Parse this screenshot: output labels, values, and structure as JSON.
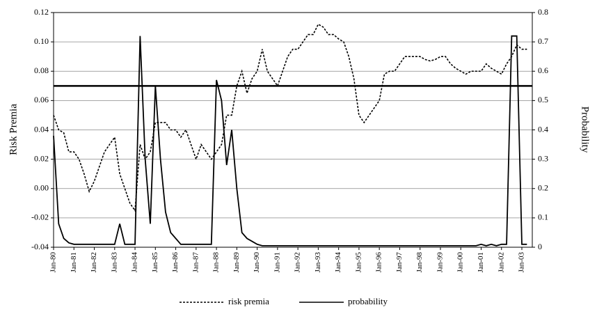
{
  "chart_data": {
    "type": "line",
    "y_label": "Risk Premia",
    "y2_label": "Probability",
    "categories": [
      "Jan-80",
      null,
      null,
      null,
      "Jan-81",
      null,
      null,
      null,
      "Jan-82",
      null,
      null,
      null,
      "Jan-83",
      null,
      null,
      null,
      "Jan-84",
      null,
      null,
      null,
      "Jan-85",
      null,
      null,
      null,
      "Jan-86",
      null,
      null,
      null,
      "Jan-87",
      null,
      null,
      null,
      "Jan-88",
      null,
      null,
      null,
      "Jan-89",
      null,
      null,
      null,
      "Jan-90",
      null,
      null,
      null,
      "Jan-91",
      null,
      null,
      null,
      "Jan-92",
      null,
      null,
      null,
      "Jan-93",
      null,
      null,
      null,
      "Jan-94",
      null,
      null,
      null,
      "Jan-95",
      null,
      null,
      null,
      "Jan-96",
      null,
      null,
      null,
      "Jan-97",
      null,
      null,
      null,
      "Jan-98",
      null,
      null,
      null,
      "Jan-99",
      null,
      null,
      null,
      "Jan-00",
      null,
      null,
      null,
      "Jan-01",
      null,
      null,
      null,
      "Jan-02",
      null,
      null,
      null,
      "Jan-03",
      null
    ],
    "series": [
      {
        "name": "risk premia",
        "color": "#000000",
        "dashed": true,
        "axis": "y",
        "values": [
          0.05,
          0.04,
          0.038,
          0.025,
          0.025,
          0.02,
          0.01,
          -0.002,
          0.005,
          0.015,
          0.025,
          0.03,
          0.035,
          0.01,
          0.0,
          -0.01,
          -0.015,
          0.03,
          0.02,
          0.025,
          0.045,
          0.045,
          0.045,
          0.04,
          0.04,
          0.035,
          0.04,
          0.03,
          0.02,
          0.03,
          0.025,
          0.02,
          0.025,
          0.03,
          0.05,
          0.05,
          0.07,
          0.08,
          0.065,
          0.075,
          0.08,
          0.095,
          0.08,
          0.075,
          0.07,
          0.08,
          0.09,
          0.095,
          0.095,
          0.1,
          0.105,
          0.105,
          0.112,
          0.11,
          0.105,
          0.105,
          0.102,
          0.1,
          0.09,
          0.075,
          0.05,
          0.045,
          0.05,
          0.055,
          0.06,
          0.078,
          0.08,
          0.08,
          0.085,
          0.09,
          0.09,
          0.09,
          0.09,
          0.088,
          0.087,
          0.088,
          0.09,
          0.09,
          0.085,
          0.082,
          0.08,
          0.078,
          0.08,
          0.08,
          0.08,
          0.085,
          0.082,
          0.08,
          0.078,
          0.085,
          0.09,
          0.098,
          0.095,
          0.095
        ]
      },
      {
        "name": "probability",
        "color": "#000000",
        "dashed": false,
        "axis": "y2",
        "values": [
          0.38,
          0.08,
          0.03,
          0.015,
          0.01,
          0.01,
          0.01,
          0.01,
          0.01,
          0.01,
          0.01,
          0.01,
          0.01,
          0.08,
          0.01,
          0.01,
          0.01,
          0.72,
          0.3,
          0.08,
          0.55,
          0.3,
          0.12,
          0.05,
          0.03,
          0.01,
          0.01,
          0.01,
          0.01,
          0.01,
          0.01,
          0.01,
          0.57,
          0.5,
          0.28,
          0.4,
          0.2,
          0.05,
          0.03,
          0.02,
          0.01,
          0.005,
          0.005,
          0.005,
          0.005,
          0.005,
          0.005,
          0.005,
          0.005,
          0.005,
          0.005,
          0.005,
          0.005,
          0.005,
          0.005,
          0.005,
          0.005,
          0.005,
          0.005,
          0.005,
          0.005,
          0.005,
          0.005,
          0.005,
          0.005,
          0.005,
          0.005,
          0.005,
          0.005,
          0.005,
          0.005,
          0.005,
          0.005,
          0.005,
          0.005,
          0.005,
          0.005,
          0.005,
          0.005,
          0.005,
          0.005,
          0.005,
          0.005,
          0.005,
          0.01,
          0.005,
          0.01,
          0.005,
          0.01,
          0.01,
          0.72,
          0.72,
          0.01,
          0.01
        ]
      }
    ],
    "reference_y": 0.07,
    "ylim": [
      -0.04,
      0.12
    ],
    "yticks": [
      -0.04,
      -0.02,
      {
        "value": 0,
        "label": "0.00"
      },
      0.02,
      0.04,
      0.06,
      0.08,
      {
        "value": 0.1,
        "label": "0.10"
      },
      0.12
    ],
    "y2lim": [
      0,
      0.8
    ],
    "y2ticks": [
      0,
      0.1,
      0.2,
      0.3,
      0.4,
      0.5,
      0.6,
      0.7,
      0.8
    ],
    "grid": true,
    "legend": "bottom"
  }
}
